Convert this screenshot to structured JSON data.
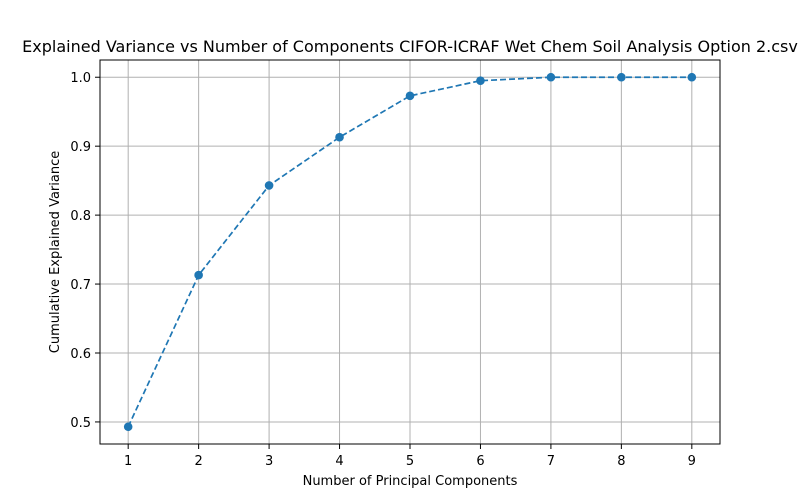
{
  "chart_data": {
    "type": "line",
    "title": "Explained Variance vs Number of Components CIFOR-ICRAF Wet Chem Soil Analysis Option 2.csv",
    "xlabel": "Number of Principal Components",
    "ylabel": "Cumulative Explained Variance",
    "x": [
      1,
      2,
      3,
      4,
      5,
      6,
      7,
      8,
      9
    ],
    "series": [
      {
        "name": "Cumulative Explained Variance",
        "values": [
          0.493,
          0.713,
          0.843,
          0.913,
          0.973,
          0.995,
          1.0,
          1.0,
          1.0
        ],
        "color": "#1f77b4",
        "line_style": "dashed",
        "marker": "circle"
      }
    ],
    "xticks": [
      "1",
      "2",
      "3",
      "4",
      "5",
      "6",
      "7",
      "8",
      "9"
    ],
    "yticks": [
      "0.5",
      "0.6",
      "0.7",
      "0.8",
      "0.9",
      "1.0"
    ],
    "ytick_values": [
      0.5,
      0.6,
      0.7,
      0.8,
      0.9,
      1.0
    ],
    "xlim": [
      0.6,
      9.4
    ],
    "ylim": [
      0.468,
      1.025
    ],
    "grid": true
  }
}
